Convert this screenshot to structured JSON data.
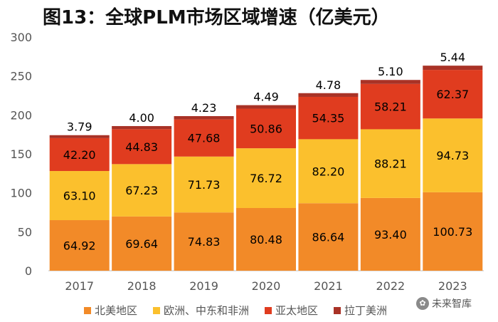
{
  "title": "图13：全球PLM市场区域增速（亿美元）",
  "watermark": {
    "icon": "wechat-icon",
    "text": "未来智库"
  },
  "chart_data": {
    "type": "bar",
    "stacked": true,
    "title": "图13：全球PLM市场区域增速（亿美元）",
    "categories": [
      "2017",
      "2018",
      "2019",
      "2020",
      "2021",
      "2022",
      "2023"
    ],
    "ylim": [
      0,
      300
    ],
    "yticks": [
      0,
      50,
      100,
      150,
      200,
      250,
      300
    ],
    "grid": false,
    "legend_position": "bottom",
    "series": [
      {
        "name": "北美地区",
        "color": "#F28A28",
        "values": [
          64.92,
          69.64,
          74.83,
          80.48,
          86.64,
          93.4,
          100.73
        ],
        "labels": [
          "64.92",
          "69.64",
          "74.83",
          "80.48",
          "86.64",
          "93.40",
          "100.73"
        ]
      },
      {
        "name": "欧洲、中东和非洲",
        "color": "#FBC02D",
        "values": [
          63.1,
          67.23,
          71.73,
          76.72,
          82.2,
          88.21,
          94.73
        ],
        "labels": [
          "63.10",
          "67.23",
          "71.73",
          "76.72",
          "82.20",
          "88.21",
          "94.73"
        ]
      },
      {
        "name": "亚太地区",
        "color": "#E03C1F",
        "values": [
          42.2,
          44.83,
          47.68,
          50.86,
          54.35,
          58.21,
          62.37
        ],
        "labels": [
          "42.20",
          "44.83",
          "47.68",
          "50.86",
          "54.35",
          "58.21",
          "62.37"
        ]
      },
      {
        "name": "拉丁美洲",
        "color": "#A93226",
        "values": [
          3.79,
          4.0,
          4.23,
          4.49,
          4.78,
          5.1,
          5.44
        ],
        "labels": [
          "3.79",
          "4.00",
          "4.23",
          "4.49",
          "4.78",
          "5.10",
          "5.44"
        ]
      }
    ]
  }
}
